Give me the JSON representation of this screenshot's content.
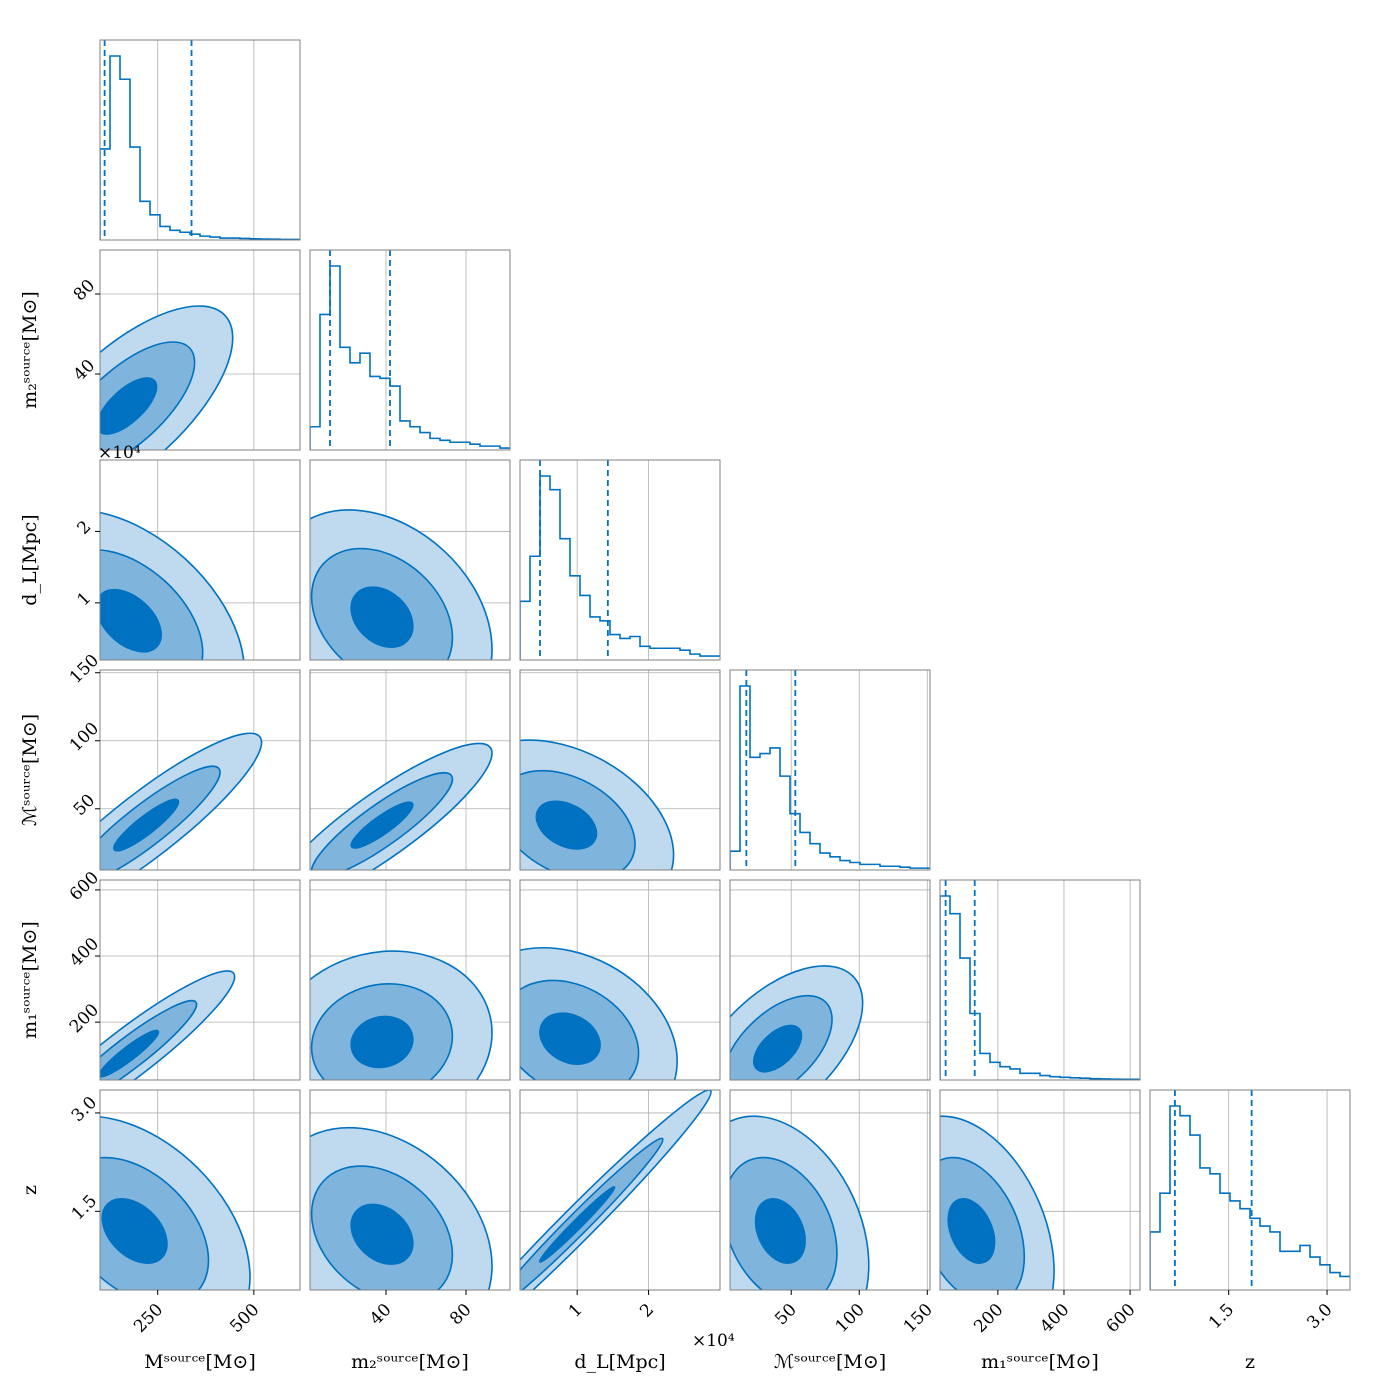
{
  "chart_data": {
    "type": "corner",
    "colors": {
      "line": "#0072c1",
      "fill_1sigma": "#0072c1",
      "fill_2sigma": "#7fb4dd",
      "fill_3sigma": "#bfd9ee",
      "grid": "#b0b0b0",
      "frame": "#808080"
    },
    "variables": [
      {
        "label": "M^source [M_sun]",
        "display": "Mˢᵒᵘʳᶜᵉ[M⊙]",
        "range": [
          100,
          620
        ],
        "ticks": [
          250,
          500
        ],
        "tick_labels": [
          "250",
          "500"
        ]
      },
      {
        "label": "m_2^source [M_sun]",
        "display": "m₂ˢᵒᵘʳᶜᵉ[M⊙]",
        "range": [
          2,
          102
        ],
        "ticks": [
          40,
          80
        ],
        "tick_labels": [
          "40",
          "80"
        ]
      },
      {
        "label": "d_L [Mpc]",
        "display": "d_L[Mpc]",
        "range": [
          0.2,
          3.0
        ],
        "ticks": [
          1,
          2
        ],
        "tick_labels": [
          "1",
          "2"
        ],
        "multiplier": "×10⁴"
      },
      {
        "label": "M_chirp^source [M_sun]",
        "display": "ℳˢᵒᵘʳᶜᵉ[M⊙]",
        "range": [
          5,
          152
        ],
        "ticks": [
          50,
          100,
          150
        ],
        "tick_labels": [
          "50",
          "100",
          "150"
        ]
      },
      {
        "label": "m_1^source [M_sun]",
        "display": "m₁ˢᵒᵘʳᶜᵉ[M⊙]",
        "range": [
          25,
          630
        ],
        "ticks": [
          200,
          400,
          600
        ],
        "tick_labels": [
          "200",
          "400",
          "600"
        ]
      },
      {
        "label": "z",
        "display": "z",
        "range": [
          0.3,
          3.35
        ],
        "ticks": [
          1.5,
          3.0
        ],
        "tick_labels": [
          "1.5",
          "3.0"
        ]
      }
    ],
    "histograms": [
      {
        "edges_start": 100,
        "bin_width": 26,
        "values": [
          0.47,
          0.95,
          0.83,
          0.48,
          0.2,
          0.13,
          0.07,
          0.05,
          0.04,
          0.03,
          0.02,
          0.015,
          0.01,
          0.01,
          0.008,
          0.006,
          0.005,
          0.004,
          0.003,
          0.003
        ],
        "quantiles": [
          112,
          338
        ]
      },
      {
        "edges_start": 2,
        "bin_width": 5,
        "values": [
          0.12,
          0.7,
          0.95,
          0.53,
          0.45,
          0.5,
          0.38,
          0.37,
          0.33,
          0.15,
          0.12,
          0.09,
          0.06,
          0.05,
          0.04,
          0.04,
          0.03,
          0.02,
          0.02,
          0.01
        ],
        "quantiles": [
          12,
          42
        ]
      },
      {
        "edges_start": 0.2,
        "bin_width": 0.14,
        "values": [
          0.3,
          0.53,
          0.94,
          0.87,
          0.62,
          0.43,
          0.33,
          0.22,
          0.2,
          0.13,
          0.11,
          0.12,
          0.07,
          0.06,
          0.06,
          0.06,
          0.05,
          0.03,
          0.02,
          0.02
        ],
        "quantiles": [
          0.48,
          1.43
        ]
      },
      {
        "edges_start": 5,
        "bin_width": 7.35,
        "values": [
          0.1,
          0.98,
          0.6,
          0.62,
          0.65,
          0.5,
          0.3,
          0.2,
          0.14,
          0.09,
          0.07,
          0.05,
          0.04,
          0.03,
          0.03,
          0.02,
          0.02,
          0.015,
          0.01,
          0.01
        ],
        "quantiles": [
          17,
          53
        ]
      },
      {
        "edges_start": 25,
        "bin_width": 30.25,
        "values": [
          0.83,
          0.75,
          0.55,
          0.3,
          0.12,
          0.08,
          0.06,
          0.05,
          0.03,
          0.03,
          0.02,
          0.015,
          0.012,
          0.01,
          0.008,
          0.006,
          0.005,
          0.004,
          0.003,
          0.003
        ],
        "quantiles": [
          42,
          130
        ]
      },
      {
        "edges_start": 0.3,
        "bin_width": 0.1525,
        "values": [
          0.3,
          0.5,
          0.95,
          0.9,
          0.8,
          0.63,
          0.6,
          0.5,
          0.46,
          0.42,
          0.37,
          0.33,
          0.3,
          0.2,
          0.2,
          0.23,
          0.17,
          0.13,
          0.09,
          0.07
        ],
        "quantiles": [
          0.68,
          1.85
        ]
      }
    ],
    "contours": {
      "1-0": {
        "mean": [
          170,
          24
        ],
        "sd": [
          110,
          20
        ],
        "rho": 0.68
      },
      "2-0": {
        "mean": [
          175,
          0.75
        ],
        "sd": [
          120,
          0.62
        ],
        "rho": -0.45
      },
      "2-1": {
        "mean": [
          38,
          0.8
        ],
        "sd": [
          22,
          0.6
        ],
        "rho": -0.3
      },
      "3-0": {
        "mean": [
          220,
          38
        ],
        "sd": [
          120,
          27
        ],
        "rho": 0.9
      },
      "3-1": {
        "mean": [
          38,
          38
        ],
        "sd": [
          22,
          24
        ],
        "rho": 0.88
      },
      "3-2": {
        "mean": [
          0.85,
          38
        ],
        "sd": [
          0.6,
          25
        ],
        "rho": -0.35
      },
      "4-0": {
        "mean": [
          175,
          105
        ],
        "sd": [
          110,
          100
        ],
        "rho": 0.93
      },
      "4-1": {
        "mean": [
          38,
          140
        ],
        "sd": [
          22,
          110
        ],
        "rho": 0.1
      },
      "4-2": {
        "mean": [
          0.9,
          150
        ],
        "sd": [
          0.6,
          110
        ],
        "rho": -0.25
      },
      "4-3": {
        "mean": [
          40,
          120
        ],
        "sd": [
          25,
          100
        ],
        "rho": 0.55
      },
      "5-0": {
        "mean": [
          190,
          1.2
        ],
        "sd": [
          120,
          0.7
        ],
        "rho": -0.4
      },
      "5-1": {
        "mean": [
          38,
          1.15
        ],
        "sd": [
          22,
          0.65
        ],
        "rho": -0.3
      },
      "5-2": {
        "mean": [
          1.0,
          1.3
        ],
        "sd": [
          0.75,
          0.82
        ],
        "rho": 0.985
      },
      "5-3": {
        "mean": [
          42,
          1.2
        ],
        "sd": [
          26,
          0.7
        ],
        "rho": -0.3
      },
      "5-4": {
        "mean": [
          120,
          1.2
        ],
        "sd": [
          100,
          0.7
        ],
        "rho": -0.35
      }
    }
  }
}
